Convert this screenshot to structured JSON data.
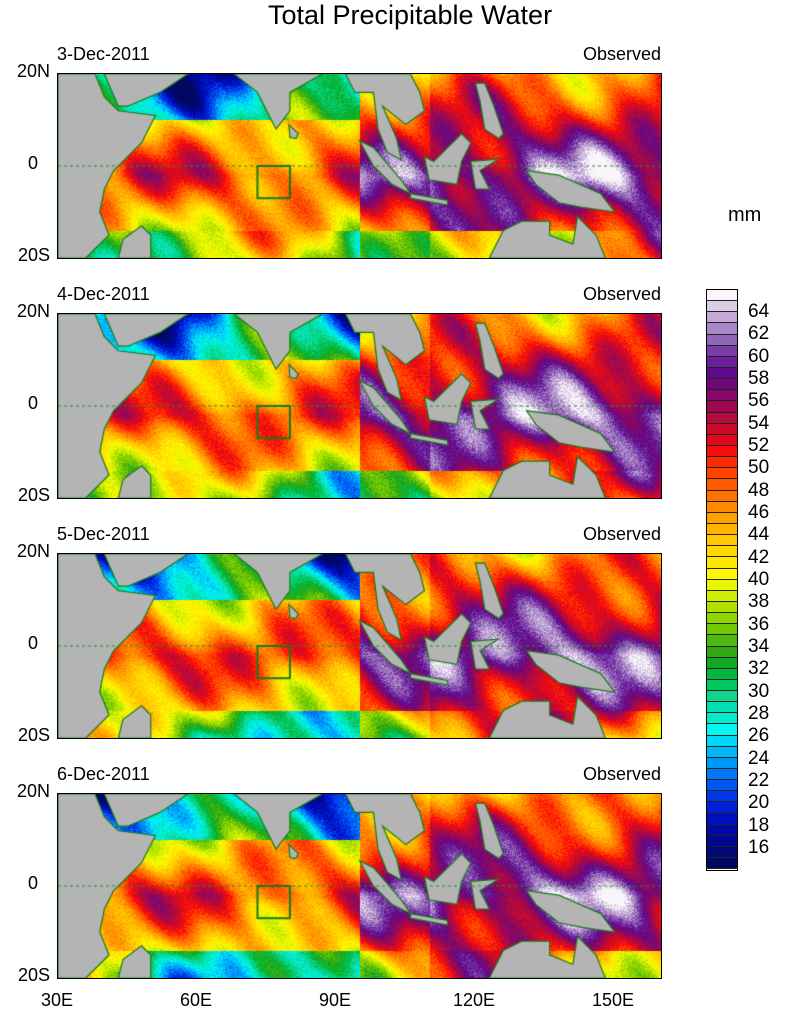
{
  "title": "Total Precipitable Water",
  "units": "mm",
  "panels": [
    {
      "date": "3-Dec-2011",
      "label": "Observed"
    },
    {
      "date": "4-Dec-2011",
      "label": "Observed"
    },
    {
      "date": "5-Dec-2011",
      "label": "Observed"
    },
    {
      "date": "6-Dec-2011",
      "label": "Observed"
    }
  ],
  "lat_labels": [
    "20N",
    "0",
    "20S"
  ],
  "lon_labels": [
    "30E",
    "60E",
    "90E",
    "120E",
    "150E"
  ],
  "colorbar": {
    "labels": [
      "64",
      "62",
      "60",
      "58",
      "56",
      "54",
      "52",
      "50",
      "48",
      "46",
      "44",
      "42",
      "40",
      "38",
      "36",
      "34",
      "32",
      "30",
      "28",
      "26",
      "24",
      "22",
      "20",
      "18",
      "16"
    ],
    "colors_top_to_bottom": [
      "#f8f6fa",
      "#dccde6",
      "#c3a8d8",
      "#aa88c8",
      "#9266b6",
      "#7a3ca8",
      "#6a1e9a",
      "#5e0a8a",
      "#6e0878",
      "#860868",
      "#9e0850",
      "#b40a3c",
      "#cc0a2a",
      "#e20a1a",
      "#fa0a0a",
      "#ff2a00",
      "#ff4400",
      "#ff5c00",
      "#ff7400",
      "#ff8a00",
      "#ffa000",
      "#ffb400",
      "#ffc800",
      "#ffd800",
      "#ffe800",
      "#fff800",
      "#e8f800",
      "#ccee00",
      "#b0e000",
      "#90d400",
      "#70c800",
      "#50b810",
      "#30a810",
      "#10a820",
      "#00b840",
      "#00c860",
      "#10d488",
      "#00e0b0",
      "#00eccc",
      "#00f8f0",
      "#00d8f8",
      "#00b8f8",
      "#0098f8",
      "#0078f8",
      "#0058f0",
      "#0038e8",
      "#0020d8",
      "#0010c0",
      "#0008a8",
      "#000890",
      "#000878",
      "#000860"
    ]
  },
  "chart_data": {
    "type": "heatmap",
    "title": "Total Precipitable Water",
    "variable_units": "mm",
    "panels": [
      "3-Dec-2011",
      "4-Dec-2011",
      "5-Dec-2011",
      "6-Dec-2011"
    ],
    "xlim": [
      30,
      160
    ],
    "ylim": [
      -20,
      20
    ],
    "xticks": [
      "30E",
      "60E",
      "90E",
      "120E",
      "150E"
    ],
    "yticks": [
      "20N",
      "0",
      "20S"
    ],
    "colorbar_range": [
      14,
      66
    ],
    "colorbar_step": 1,
    "box_region": {
      "lon": [
        73,
        80
      ],
      "lat": [
        -7,
        0
      ]
    }
  }
}
